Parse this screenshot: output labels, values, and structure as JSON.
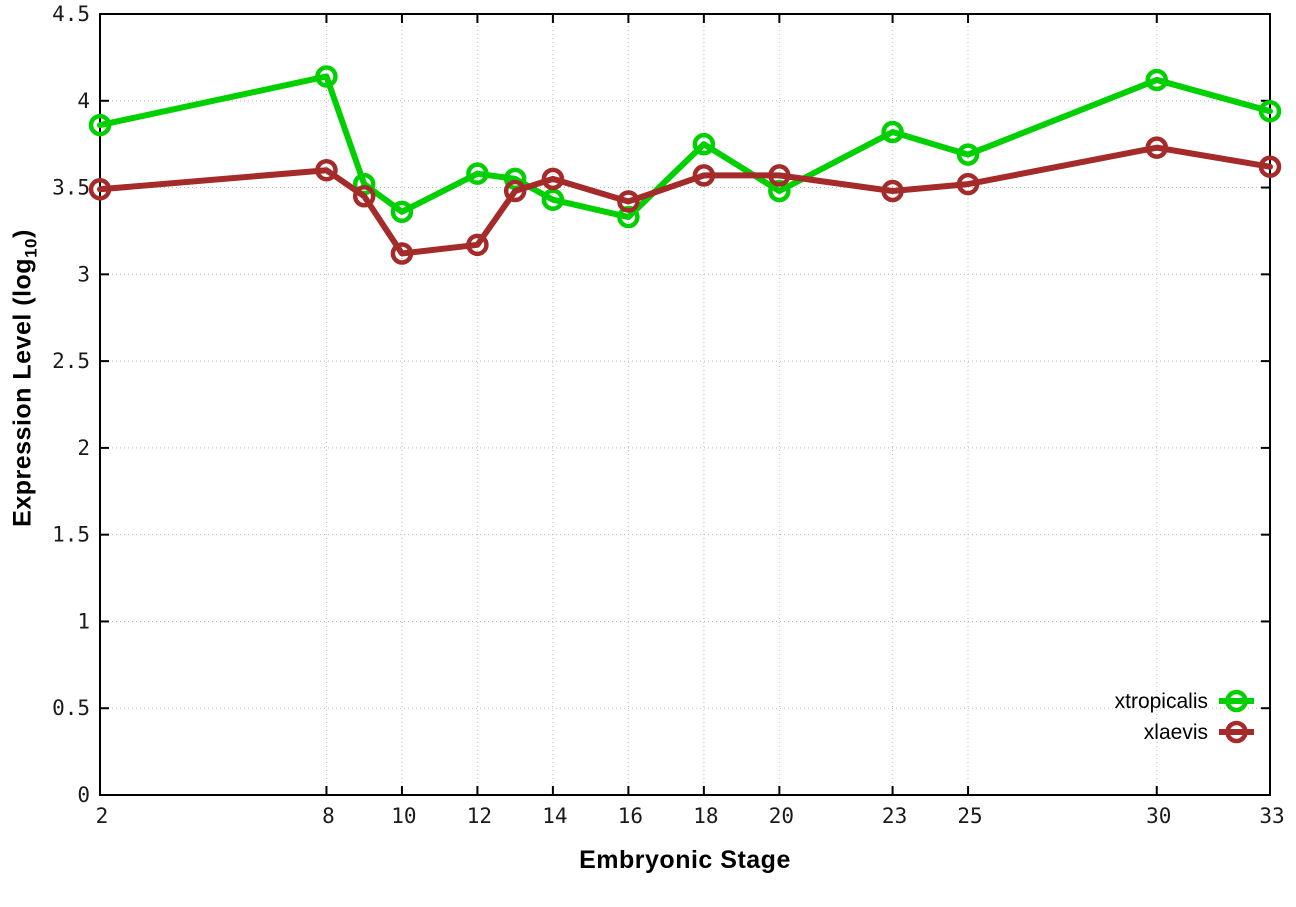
{
  "chart_data": {
    "type": "line",
    "title": "",
    "xlabel": "Embryonic Stage",
    "ylabel": "Expression Level (log10)",
    "ylabel_parts": {
      "prefix": "Expression Level (log",
      "sub": "10",
      "suffix": ")"
    },
    "xlim": [
      2,
      33
    ],
    "ylim": [
      0,
      4.5
    ],
    "x_tick_values": [
      2,
      8,
      10,
      12,
      14,
      16,
      18,
      20,
      23,
      25,
      30,
      33
    ],
    "x_tick_labels": [
      "2",
      "8",
      "10",
      "12",
      "14",
      "16",
      "18",
      "20",
      "23",
      "25",
      "30",
      "33"
    ],
    "y_tick_values": [
      0,
      0.5,
      1,
      1.5,
      2,
      2.5,
      3,
      3.5,
      4,
      4.5
    ],
    "y_tick_labels": [
      "0",
      "0.5",
      "1",
      "1.5",
      "2",
      "2.5",
      "3",
      "3.5",
      "4",
      "4.5"
    ],
    "grid": true,
    "legend_position": "inside-bottom-right",
    "x": [
      2,
      8,
      9,
      10,
      12,
      13,
      14,
      16,
      18,
      20,
      23,
      25,
      30,
      33
    ],
    "series": [
      {
        "name": "xtropicalis",
        "color": "#00d000",
        "values": [
          3.86,
          4.14,
          3.52,
          3.36,
          3.58,
          3.55,
          3.43,
          3.33,
          3.75,
          3.48,
          3.82,
          3.69,
          4.12,
          3.94
        ]
      },
      {
        "name": "xlaevis",
        "color": "#a52a2a",
        "values": [
          3.49,
          3.6,
          3.45,
          3.12,
          3.17,
          3.48,
          3.55,
          3.42,
          3.57,
          3.57,
          3.48,
          3.52,
          3.73,
          3.62
        ]
      }
    ],
    "colors": {
      "grid": "#bbbbbb",
      "axis": "#000000",
      "background": "#ffffff"
    }
  }
}
